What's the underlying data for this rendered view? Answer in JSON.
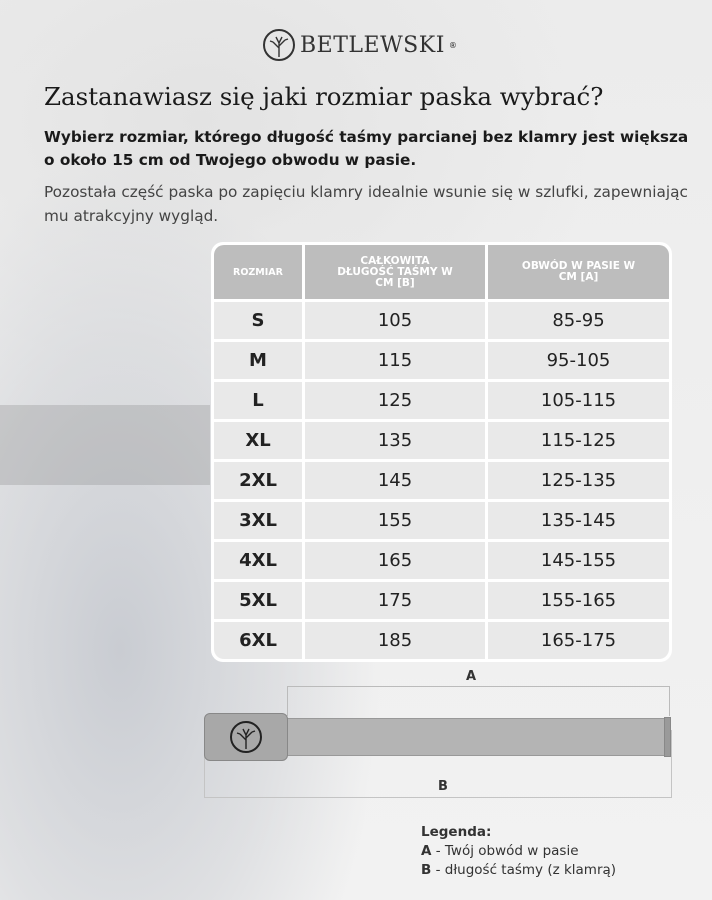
{
  "brand": {
    "name": "BETLEWSKI",
    "registered": "®"
  },
  "heading": "Zastanawiasz się jaki rozmiar paska wybrać?",
  "intro_bold": "Wybierz rozmiar, którego długość taśmy parcianej bez klamry jest większa o około 15 cm od Twojego obwodu w pasie.",
  "intro": "Pozostała część paska po zapięciu klamry idealnie wsunie się w szlufki, zapewniając mu atrakcyjny wygląd.",
  "table": {
    "headers": [
      "ROZMIAR",
      "CAŁKOWITA DŁUGOŚĆ TAŚMY W CM [B]",
      "OBWÓD W PASIE W CM [A]"
    ],
    "rows": [
      [
        "S",
        "105",
        "85-95"
      ],
      [
        "M",
        "115",
        "95-105"
      ],
      [
        "L",
        "125",
        "105-115"
      ],
      [
        "XL",
        "135",
        "115-125"
      ],
      [
        "2XL",
        "145",
        "125-135"
      ],
      [
        "3XL",
        "155",
        "135-145"
      ],
      [
        "4XL",
        "165",
        "145-155"
      ],
      [
        "5XL",
        "175",
        "155-165"
      ],
      [
        "6XL",
        "185",
        "165-175"
      ]
    ]
  },
  "diagram": {
    "label_a": "A",
    "label_b": "B",
    "buckle_icon": "tree-logo-icon"
  },
  "legend": {
    "title": "Legenda:",
    "items": [
      {
        "key": "A",
        "text": " - Twój obwód w pasie"
      },
      {
        "key": "B",
        "text": " - długość taśmy (z klamrą)"
      }
    ]
  },
  "colors": {
    "header": "#bdbdbd",
    "cell": "#e9e9e9",
    "strap": "#b4b4b4"
  }
}
